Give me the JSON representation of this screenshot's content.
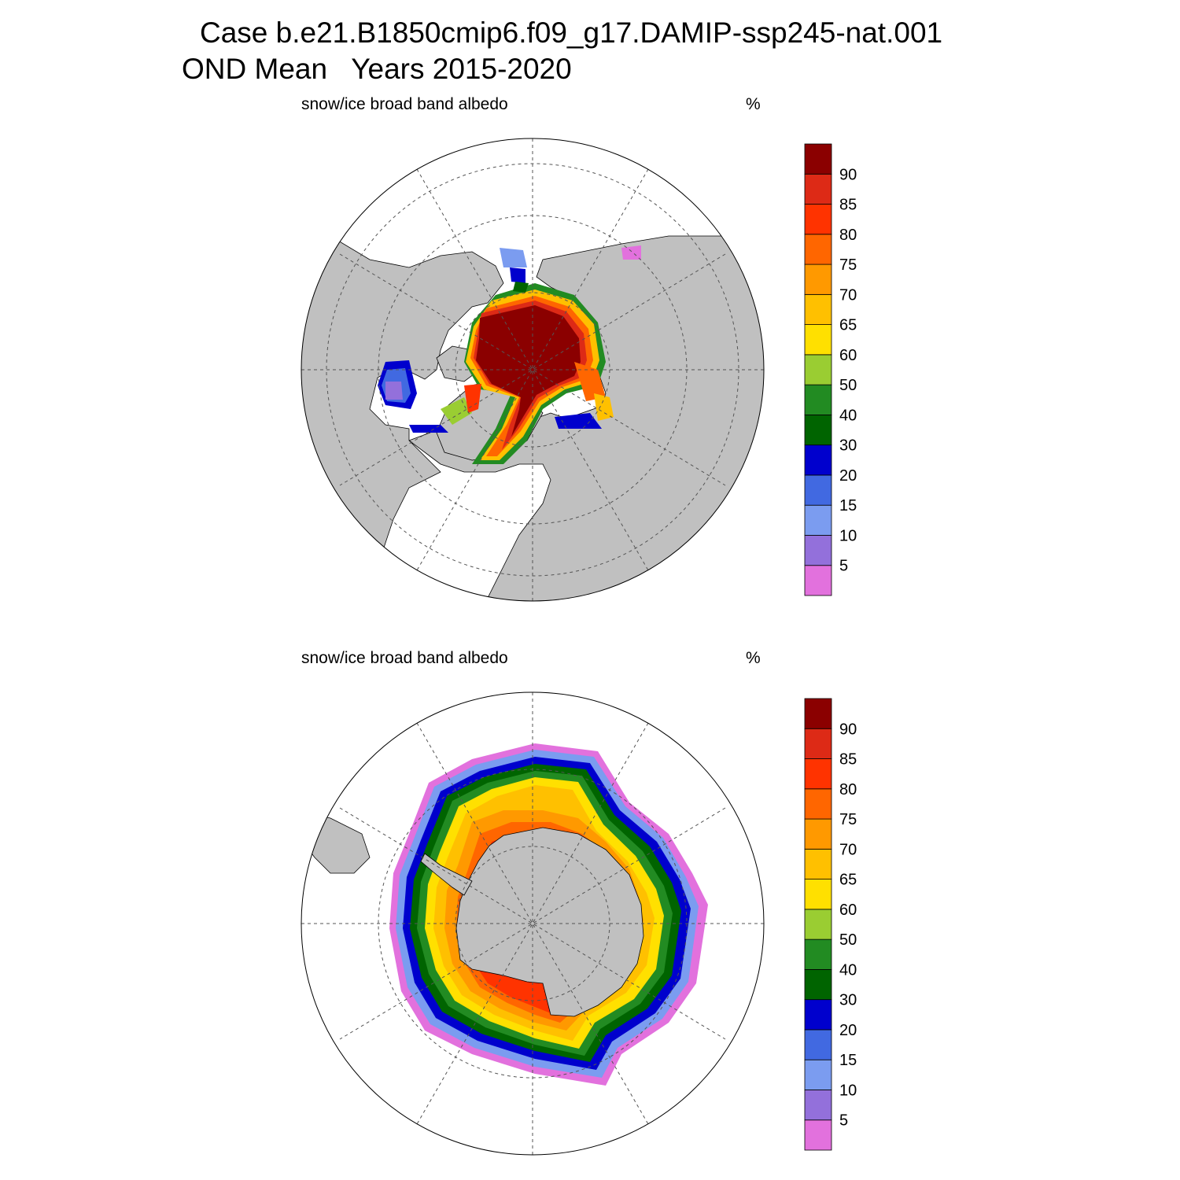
{
  "title": {
    "line1": "Case b.e21.B1850cmip6.f09_g17.DAMIP-ssp245-nat.001",
    "line2": "OND Mean   Years 2015-2020"
  },
  "panels": [
    {
      "id": "north",
      "variable": "snow/ice broad band albedo",
      "units": "%"
    },
    {
      "id": "south",
      "variable": "snow/ice broad band albedo",
      "units": "%"
    }
  ],
  "colorbar": {
    "colors": [
      "#e271dd",
      "#9370db",
      "#7b9cf0",
      "#4169e1",
      "#0000cd",
      "#006400",
      "#228b22",
      "#9acd32",
      "#ffe000",
      "#ffc000",
      "#ff9900",
      "#ff6600",
      "#ff3300",
      "#dd2a16",
      "#8b0000"
    ],
    "labels": [
      "5",
      "10",
      "15",
      "20",
      "30",
      "40",
      "50",
      "60",
      "65",
      "70",
      "75",
      "80",
      "85",
      "90"
    ]
  },
  "map_colors": {
    "land": "#c0c0c0",
    "ocean": "#ffffff",
    "grid": "#555555"
  }
}
